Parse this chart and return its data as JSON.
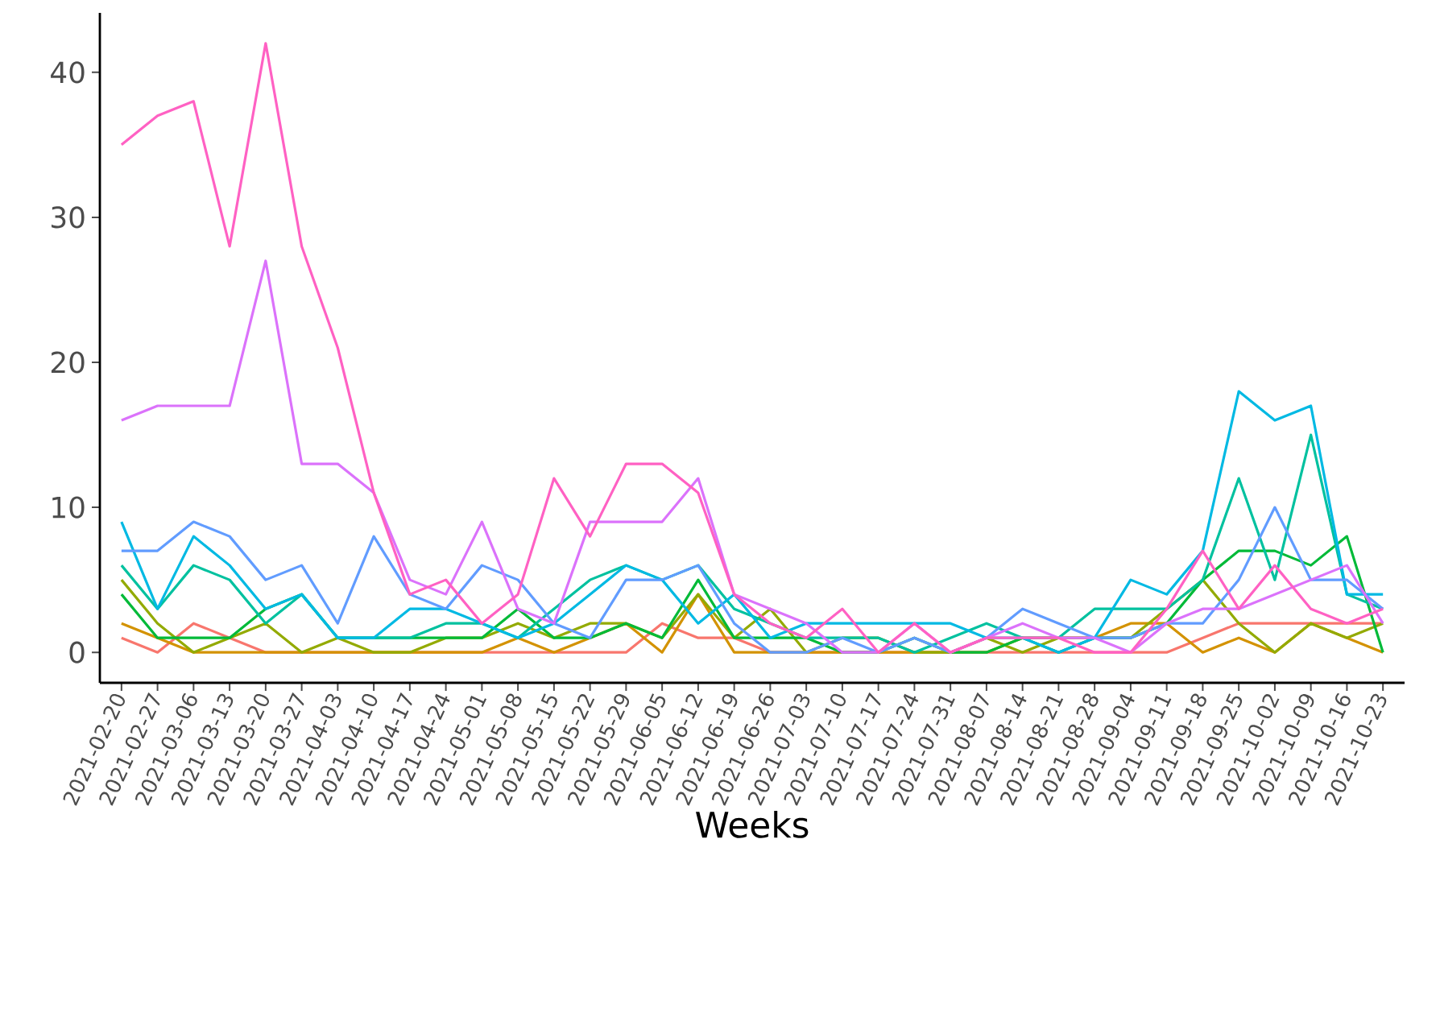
{
  "chart_data": {
    "type": "line",
    "xlabel": "Weeks",
    "categories": [
      "2021-02-20",
      "2021-02-27",
      "2021-03-06",
      "2021-03-13",
      "2021-03-20",
      "2021-03-27",
      "2021-04-03",
      "2021-04-10",
      "2021-04-17",
      "2021-04-24",
      "2021-05-01",
      "2021-05-08",
      "2021-05-15",
      "2021-05-22",
      "2021-05-29",
      "2021-06-05",
      "2021-06-12",
      "2021-06-19",
      "2021-06-26",
      "2021-07-03",
      "2021-07-10",
      "2021-07-17",
      "2021-07-24",
      "2021-07-31",
      "2021-08-07",
      "2021-08-14",
      "2021-08-21",
      "2021-08-28",
      "2021-09-04",
      "2021-09-11",
      "2021-09-18",
      "2021-09-25",
      "2021-10-02",
      "2021-10-09",
      "2021-10-16",
      "2021-10-23"
    ],
    "ylim": [
      -2.1,
      44.1
    ],
    "yticks": [
      0,
      10,
      20,
      30,
      40
    ],
    "marker": "none",
    "line_style": "solid",
    "series": [
      {
        "color": "#f8766d",
        "values": [
          1,
          0,
          2,
          1,
          0,
          0,
          0,
          0,
          0,
          0,
          0,
          0,
          0,
          0,
          0,
          2,
          1,
          1,
          0,
          0,
          0,
          0,
          0,
          0,
          0,
          0,
          0,
          0,
          0,
          0,
          1,
          2,
          2,
          2,
          2,
          2
        ]
      },
      {
        "color": "#d39200",
        "values": [
          2,
          1,
          0,
          0,
          0,
          0,
          0,
          0,
          0,
          0,
          0,
          1,
          0,
          1,
          2,
          0,
          4,
          0,
          0,
          0,
          0,
          0,
          0,
          0,
          0,
          1,
          1,
          1,
          2,
          2,
          0,
          1,
          0,
          2,
          1,
          0
        ]
      },
      {
        "color": "#93aa00",
        "values": [
          5,
          2,
          0,
          1,
          2,
          0,
          1,
          0,
          0,
          1,
          1,
          2,
          1,
          2,
          2,
          1,
          4,
          1,
          3,
          0,
          1,
          1,
          0,
          0,
          1,
          0,
          1,
          1,
          1,
          3,
          5,
          2,
          0,
          2,
          1,
          2
        ]
      },
      {
        "color": "#00ba38",
        "values": [
          4,
          1,
          1,
          1,
          3,
          4,
          1,
          1,
          1,
          1,
          1,
          3,
          1,
          1,
          2,
          1,
          5,
          1,
          1,
          1,
          0,
          0,
          1,
          0,
          0,
          1,
          0,
          1,
          1,
          2,
          5,
          7,
          7,
          6,
          8,
          0
        ]
      },
      {
        "color": "#00c19f",
        "values": [
          6,
          3,
          6,
          5,
          2,
          4,
          1,
          1,
          1,
          2,
          2,
          1,
          3,
          5,
          6,
          5,
          6,
          3,
          2,
          1,
          1,
          1,
          0,
          1,
          2,
          1,
          1,
          3,
          3,
          3,
          5,
          12,
          5,
          15,
          4,
          3
        ]
      },
      {
        "color": "#00b9e3",
        "values": [
          9,
          3,
          8,
          6,
          3,
          4,
          1,
          1,
          3,
          3,
          2,
          1,
          2,
          4,
          6,
          5,
          2,
          4,
          1,
          2,
          2,
          2,
          2,
          2,
          1,
          1,
          0,
          1,
          5,
          4,
          7,
          18,
          16,
          17,
          4,
          4
        ]
      },
      {
        "color": "#619cff",
        "values": [
          7,
          7,
          9,
          8,
          5,
          6,
          2,
          8,
          4,
          3,
          6,
          5,
          2,
          1,
          5,
          5,
          6,
          2,
          0,
          0,
          1,
          0,
          1,
          0,
          1,
          3,
          2,
          1,
          1,
          2,
          2,
          5,
          10,
          5,
          5,
          3
        ]
      },
      {
        "color": "#db72fb",
        "values": [
          16,
          17,
          17,
          17,
          27,
          13,
          13,
          11,
          5,
          4,
          9,
          3,
          2,
          9,
          9,
          9,
          12,
          4,
          3,
          2,
          0,
          0,
          2,
          0,
          1,
          2,
          1,
          1,
          0,
          2,
          3,
          3,
          4,
          5,
          6,
          2
        ]
      },
      {
        "color": "#ff61c3",
        "values": [
          35,
          37,
          38,
          28,
          42,
          28,
          21,
          11,
          4,
          5,
          2,
          4,
          12,
          8,
          13,
          13,
          11,
          4,
          2,
          1,
          3,
          0,
          2,
          0,
          1,
          1,
          1,
          0,
          0,
          3,
          7,
          3,
          6,
          3,
          2,
          3
        ]
      }
    ]
  }
}
